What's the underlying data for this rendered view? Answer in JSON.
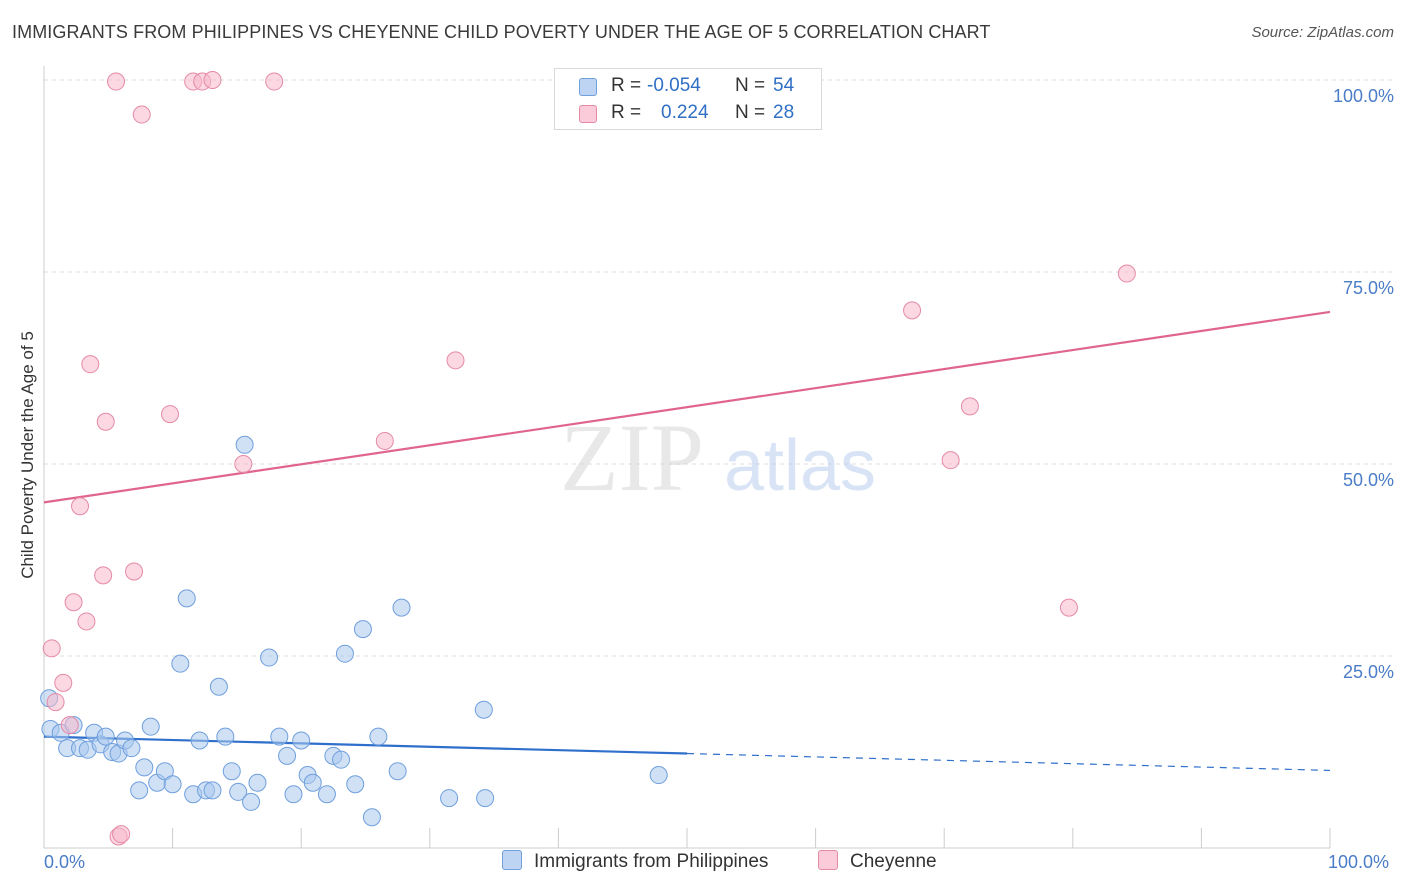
{
  "title": "IMMIGRANTS FROM PHILIPPINES VS CHEYENNE CHILD POVERTY UNDER THE AGE OF 5 CORRELATION CHART",
  "source": "Source: ZipAtlas.com",
  "watermark": {
    "zip": "ZIP",
    "atlas": "atlas"
  },
  "legend_stats": [
    {
      "r_label": "R =",
      "r_value": "-0.054",
      "n_label": "N =",
      "n_value": "54",
      "color": "#a9c8ef",
      "border": "#6f9fdc"
    },
    {
      "r_label": "R =",
      "r_value": "0.224",
      "n_label": "N =",
      "n_value": "28",
      "color": "#f7b8cb",
      "border": "#e58aa6"
    }
  ],
  "chart_data": {
    "type": "scatter",
    "ylabel": "Child Poverty Under the Age of 5",
    "xlim": [
      0,
      100
    ],
    "ylim": [
      0,
      100
    ],
    "x_tick_labels": [
      "0.0%",
      "100.0%"
    ],
    "y_tick_labels": [
      "25.0%",
      "50.0%",
      "75.0%",
      "100.0%"
    ],
    "y_ticks": [
      25,
      50,
      75,
      100
    ],
    "grid": true,
    "series": [
      {
        "name": "Immigrants from Philippines",
        "color": "#a9c8ef",
        "edge": "#6f9fdc",
        "line_color": "#2f6fcc",
        "trend": {
          "x0": 0,
          "y0": 14.5,
          "x1": 50,
          "y1": 12.3,
          "dash_x1": 100,
          "dash_y1": 10.1
        },
        "points": [
          [
            0.4,
            19.5
          ],
          [
            0.5,
            15.5
          ],
          [
            1.3,
            15.0
          ],
          [
            1.8,
            13.0
          ],
          [
            2.3,
            16.0
          ],
          [
            2.8,
            13.0
          ],
          [
            3.4,
            12.8
          ],
          [
            3.9,
            15.0
          ],
          [
            4.4,
            13.5
          ],
          [
            4.8,
            14.5
          ],
          [
            5.3,
            12.5
          ],
          [
            5.8,
            12.3
          ],
          [
            6.3,
            14.0
          ],
          [
            6.8,
            13.0
          ],
          [
            7.4,
            7.5
          ],
          [
            7.8,
            10.5
          ],
          [
            8.3,
            15.8
          ],
          [
            8.8,
            8.5
          ],
          [
            9.4,
            10.0
          ],
          [
            10.0,
            8.3
          ],
          [
            10.6,
            24.0
          ],
          [
            11.1,
            32.5
          ],
          [
            11.6,
            7.0
          ],
          [
            12.1,
            14.0
          ],
          [
            12.6,
            7.5
          ],
          [
            13.1,
            7.5
          ],
          [
            13.6,
            21.0
          ],
          [
            14.1,
            14.5
          ],
          [
            14.6,
            10.0
          ],
          [
            15.1,
            7.3
          ],
          [
            15.6,
            52.5
          ],
          [
            16.1,
            6.0
          ],
          [
            16.6,
            8.5
          ],
          [
            17.5,
            24.8
          ],
          [
            18.3,
            14.5
          ],
          [
            18.9,
            12.0
          ],
          [
            19.4,
            7.0
          ],
          [
            20.0,
            14.0
          ],
          [
            20.5,
            9.5
          ],
          [
            20.9,
            8.5
          ],
          [
            22.0,
            7.0
          ],
          [
            22.5,
            12.0
          ],
          [
            23.1,
            11.5
          ],
          [
            23.4,
            25.3
          ],
          [
            24.2,
            8.3
          ],
          [
            24.8,
            28.5
          ],
          [
            25.5,
            4.0
          ],
          [
            26.0,
            14.5
          ],
          [
            27.5,
            10.0
          ],
          [
            27.8,
            31.3
          ],
          [
            31.5,
            6.5
          ],
          [
            34.2,
            18.0
          ],
          [
            34.3,
            6.5
          ],
          [
            47.8,
            9.5
          ]
        ]
      },
      {
        "name": "Cheyenne",
        "color": "#f7b8cb",
        "edge": "#e58aa6",
        "line_color": "#e0658e",
        "trend": {
          "x0": 0,
          "y0": 45.0,
          "x1": 100,
          "y1": 69.8
        },
        "points": [
          [
            0.6,
            26.0
          ],
          [
            0.9,
            19.0
          ],
          [
            1.5,
            21.5
          ],
          [
            2.0,
            16.0
          ],
          [
            2.3,
            32.0
          ],
          [
            2.8,
            44.5
          ],
          [
            3.3,
            29.5
          ],
          [
            3.6,
            63.0
          ],
          [
            4.6,
            35.5
          ],
          [
            4.8,
            55.5
          ],
          [
            5.6,
            99.8
          ],
          [
            5.8,
            1.5
          ],
          [
            6.0,
            1.8
          ],
          [
            7.0,
            36.0
          ],
          [
            7.6,
            95.5
          ],
          [
            9.8,
            56.5
          ],
          [
            11.6,
            99.8
          ],
          [
            12.3,
            99.8
          ],
          [
            13.1,
            100.0
          ],
          [
            15.5,
            50.0
          ],
          [
            17.9,
            99.8
          ],
          [
            26.5,
            53.0
          ],
          [
            32.0,
            63.5
          ],
          [
            67.5,
            70.0
          ],
          [
            70.5,
            50.5
          ],
          [
            72.0,
            57.5
          ],
          [
            79.7,
            31.3
          ],
          [
            84.2,
            74.8
          ]
        ]
      }
    ]
  }
}
